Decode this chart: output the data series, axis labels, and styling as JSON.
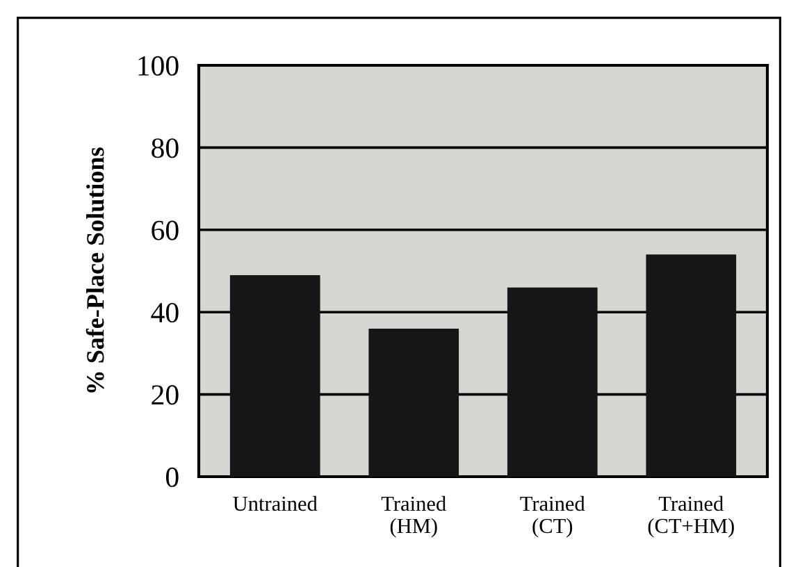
{
  "chart_data": {
    "type": "bar",
    "ylabel": "% Safe-Place Solutions",
    "categories": [
      "Untrained",
      "Trained\n(HM)",
      "Trained\n(CT)",
      "Trained\n(CT+HM)"
    ],
    "values": [
      49,
      36,
      46,
      54
    ],
    "color": "#161616",
    "ylim": [
      0,
      100
    ],
    "yticks": [
      0,
      20,
      40,
      60,
      80,
      100
    ],
    "grid": "y"
  }
}
